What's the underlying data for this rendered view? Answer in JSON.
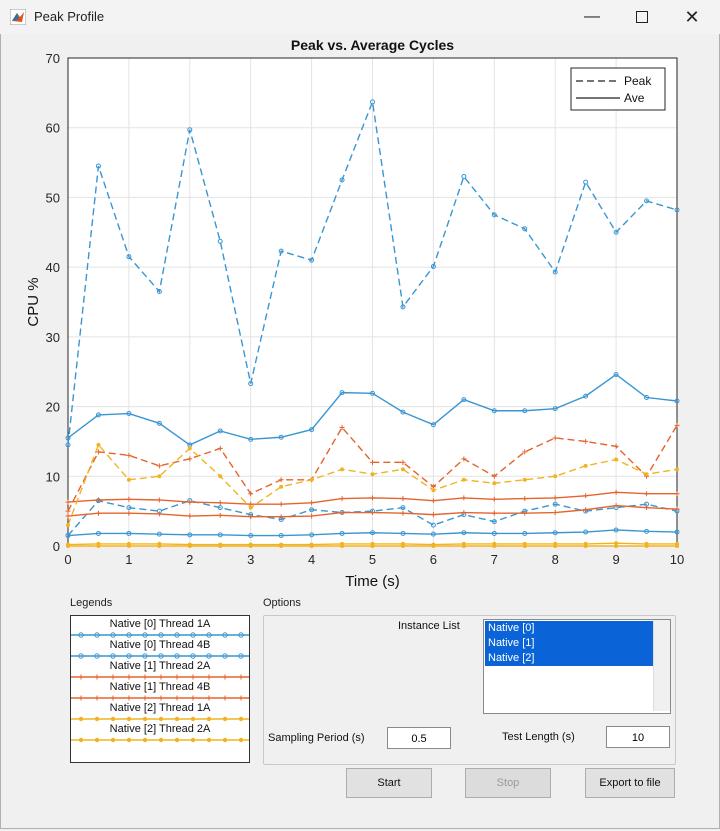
{
  "window": {
    "title": "Peak Profile",
    "minimize_icon": "minimize-icon",
    "maximize_icon": "maximize-icon",
    "close_icon": "close-icon"
  },
  "legends_panel": {
    "title": "Legends",
    "items": [
      {
        "label": "Native [0] Thread 1A",
        "color": "#3a96d2",
        "marker": "circle"
      },
      {
        "label": "Native [0] Thread 4B",
        "color": "#3a96d2",
        "marker": "circle"
      },
      {
        "label": "Native [1] Thread 2A",
        "color": "#e5632d",
        "marker": "plus"
      },
      {
        "label": "Native [1] Thread 4B",
        "color": "#e5632d",
        "marker": "plus"
      },
      {
        "label": "Native [2] Thread 1A",
        "color": "#f2b322",
        "marker": "star"
      },
      {
        "label": "Native [2] Thread 2A",
        "color": "#f2b322",
        "marker": "star"
      }
    ]
  },
  "options_panel": {
    "title": "Options",
    "instance_list_label": "Instance List",
    "instances": [
      "Native [0]",
      "Native [1]",
      "Native [2]"
    ],
    "sampling_period_label": "Sampling Period (s)",
    "sampling_period_value": "0.5",
    "test_length_label": "Test Length (s)",
    "test_length_value": "10"
  },
  "buttons": {
    "start": "Start",
    "stop": "Stop",
    "export": "Export to file"
  },
  "chart_data": {
    "type": "line",
    "title": "Peak vs. Average Cycles",
    "xlabel": "Time (s)",
    "ylabel": "CPU %",
    "xlim": [
      0,
      10
    ],
    "ylim": [
      0,
      70
    ],
    "xticks": [
      0,
      1,
      2,
      3,
      4,
      5,
      6,
      7,
      8,
      9,
      10
    ],
    "yticks": [
      0,
      10,
      20,
      30,
      40,
      50,
      60,
      70
    ],
    "grid": true,
    "legend_placement": "top-right",
    "legend_entries": [
      "Peak",
      "Ave"
    ],
    "x": [
      0,
      0.5,
      1,
      1.5,
      2,
      2.5,
      3,
      3.5,
      4,
      4.5,
      5,
      5.5,
      6,
      6.5,
      7,
      7.5,
      8,
      8.5,
      9,
      9.5,
      10
    ],
    "series": [
      {
        "group": "Native [0]",
        "style": "peak",
        "color": "#3a96d2",
        "marker": "circle",
        "values": [
          14.5,
          54.5,
          41.5,
          36.5,
          59.7,
          43.7,
          23.3,
          42.3,
          41,
          52.5,
          63.7,
          34.3,
          40.1,
          53,
          47.5,
          45.5,
          39.3,
          52.2,
          45,
          49.5,
          48.2
        ]
      },
      {
        "group": "Native [0]",
        "style": "average",
        "color": "#3a96d2",
        "marker": "circle",
        "values": [
          15.5,
          18.8,
          19,
          17.6,
          14.5,
          16.5,
          15.3,
          15.6,
          16.7,
          22,
          21.9,
          19.2,
          17.4,
          21,
          19.4,
          19.4,
          19.7,
          21.5,
          24.6,
          21.3,
          20.8
        ]
      },
      {
        "group": "Native [0]",
        "style": "peak",
        "color": "#3a96d2",
        "marker": "circle",
        "values": [
          1.5,
          6.5,
          5.5,
          5,
          6.5,
          5.5,
          4.5,
          3.8,
          5.2,
          4.8,
          5,
          5.5,
          3,
          4.5,
          3.5,
          5,
          6,
          5,
          5.5,
          6,
          5
        ]
      },
      {
        "group": "Native [0]",
        "style": "average",
        "color": "#3a96d2",
        "marker": "circle",
        "values": [
          1.5,
          1.8,
          1.8,
          1.7,
          1.6,
          1.6,
          1.5,
          1.5,
          1.6,
          1.8,
          1.9,
          1.8,
          1.7,
          1.9,
          1.8,
          1.8,
          1.9,
          2,
          2.3,
          2.1,
          2
        ]
      },
      {
        "group": "Native [1]",
        "style": "peak",
        "color": "#e5632d",
        "marker": "plus",
        "values": [
          5,
          13.5,
          13,
          11.5,
          12.5,
          14,
          7.5,
          9.5,
          9.5,
          17,
          12,
          12,
          8.5,
          12.5,
          10,
          13.5,
          15.5,
          15,
          14.3,
          10,
          17.3
        ]
      },
      {
        "group": "Native [1]",
        "style": "average",
        "color": "#e5632d",
        "marker": "plus",
        "values": [
          6.3,
          6.6,
          6.7,
          6.6,
          6.3,
          6.2,
          6,
          6,
          6.2,
          6.8,
          6.9,
          6.8,
          6.5,
          6.9,
          6.7,
          6.8,
          6.9,
          7.2,
          7.7,
          7.5,
          7.5
        ]
      },
      {
        "group": "Native [1]",
        "style": "average",
        "color": "#e5632d",
        "marker": "plus",
        "values": [
          4.3,
          4.7,
          4.7,
          4.6,
          4.3,
          4.4,
          4.2,
          4.2,
          4.3,
          4.8,
          4.8,
          4.7,
          4.5,
          4.8,
          4.7,
          4.7,
          4.8,
          5.2,
          5.8,
          5.5,
          5.3
        ]
      },
      {
        "group": "Native [2]",
        "style": "peak",
        "color": "#f2b322",
        "marker": "star",
        "values": [
          3,
          14.5,
          9.5,
          10,
          14,
          10,
          5.5,
          8.5,
          9.5,
          11,
          10.3,
          11,
          8,
          9.5,
          9,
          9.5,
          10,
          11.5,
          12.4,
          10.3,
          11
        ]
      },
      {
        "group": "Native [2]",
        "style": "average",
        "color": "#f2b322",
        "marker": "star",
        "values": [
          0.2,
          0.3,
          0.3,
          0.3,
          0.2,
          0.2,
          0.2,
          0.2,
          0.2,
          0.3,
          0.3,
          0.3,
          0.2,
          0.3,
          0.3,
          0.3,
          0.3,
          0.3,
          0.4,
          0.3,
          0.3
        ]
      },
      {
        "group": "Native [2]",
        "style": "average",
        "color": "#f2b322",
        "marker": "star",
        "values": [
          0,
          0,
          0,
          0,
          0,
          0,
          0,
          0,
          0,
          0,
          0,
          0,
          0,
          0,
          0,
          0,
          0,
          0,
          0,
          0,
          0
        ]
      }
    ]
  }
}
